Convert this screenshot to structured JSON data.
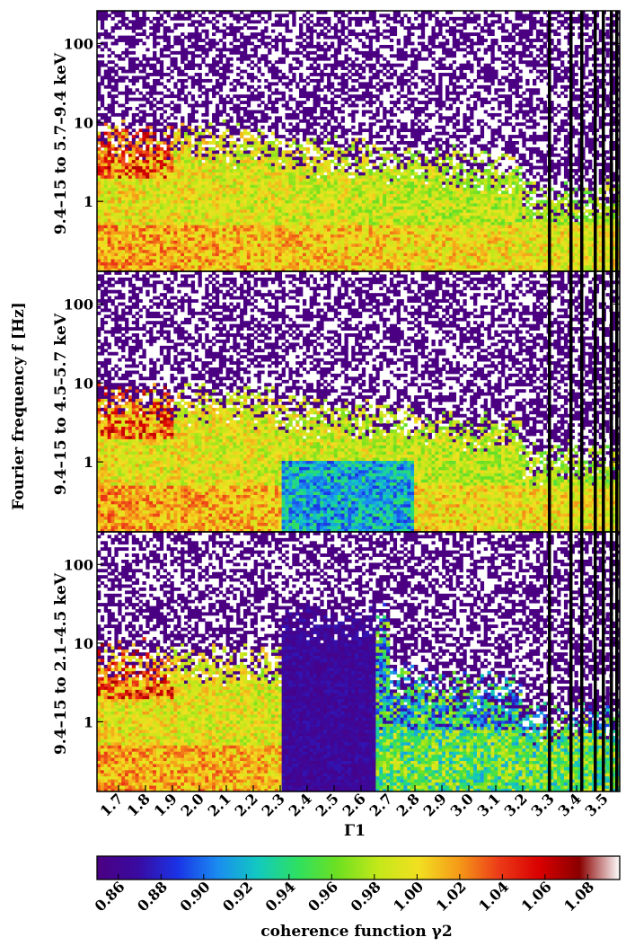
{
  "chart_data": {
    "type": "heatmap",
    "y_axis_title": "Fourier frequency f [Hz]",
    "x_axis_title": "Γ1",
    "colorbar_label": "coherence function γ2",
    "panels": [
      {
        "label": "9.4–15 to 5.7–9.4 keV"
      },
      {
        "label": "9.4–15 to 4.5–5.7 keV"
      },
      {
        "label": "9.4–15 to 2.1–4.5 keV"
      }
    ],
    "x_range": [
      1.62,
      3.56
    ],
    "y_range": [
      0.13,
      260
    ],
    "y_scale": "log",
    "x_ticks": [
      "1.7",
      "1.8",
      "1.9",
      "2.0",
      "2.1",
      "2.2",
      "2.3",
      "2.4",
      "2.5",
      "2.6",
      "2.7",
      "2.8",
      "2.9",
      "3.0",
      "3.1",
      "3.2",
      "3.3",
      "3.4",
      "3.5"
    ],
    "y_ticks": [
      "1",
      "10",
      "100"
    ],
    "colorbar_range": [
      0.85,
      1.095
    ],
    "colorbar_ticks": [
      "0.86",
      "0.88",
      "0.90",
      "0.92",
      "0.94",
      "0.96",
      "0.98",
      "1.00",
      "1.02",
      "1.04",
      "1.06",
      "1.08"
    ],
    "colorbar_stops": [
      "#4b0082",
      "#3a0aa0",
      "#1a33e6",
      "#1a8cf0",
      "#12c9c0",
      "#2ee060",
      "#6fe020",
      "#c4e81a",
      "#f2e021",
      "#f59a18",
      "#ec3a18",
      "#d90000",
      "#8a0000",
      "#ffffff"
    ],
    "black_columns_x": [
      3.3,
      3.38,
      3.42,
      3.47,
      3.5,
      3.53,
      3.55
    ],
    "features": {
      "high_frequency_region": "mixed dark purple and white noise above ~10 Hz",
      "low_frequency_region": "green to yellow coherence below ~5 Hz for Γ1 < 2.3",
      "dip_region": "dark blue/purple low-coherence region around Γ1 2.3–2.65, strongest in bottom panel"
    }
  }
}
